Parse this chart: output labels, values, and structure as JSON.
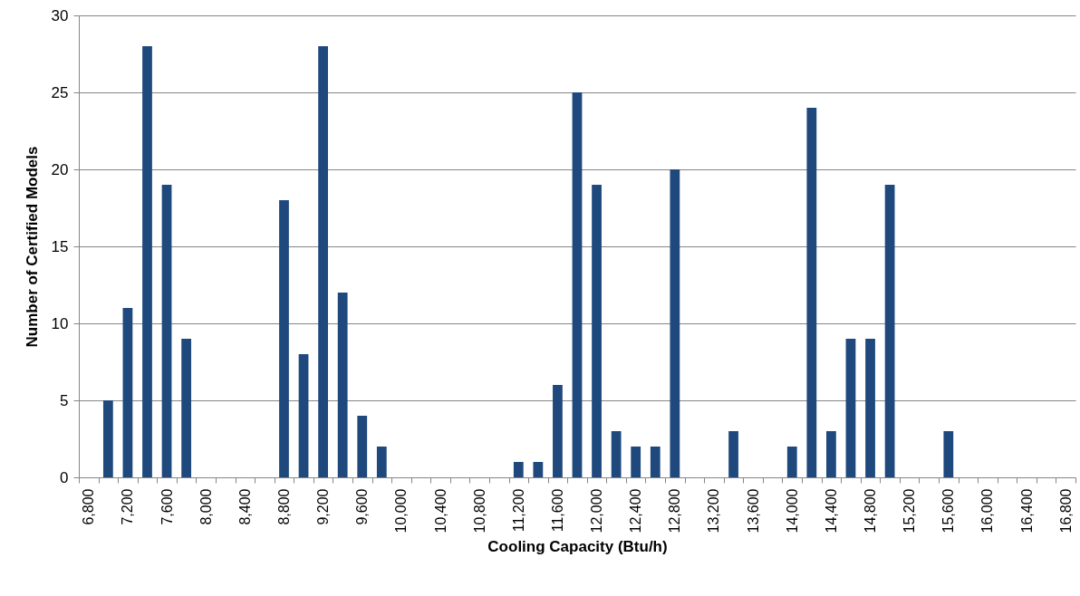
{
  "chart_data": {
    "type": "bar",
    "xlabel": "Cooling Capacity (Btu/h)",
    "ylabel": "Number of Certified Models",
    "categories": [
      "6,800",
      null,
      "7,200",
      null,
      "7,600",
      null,
      "8,000",
      null,
      "8,400",
      null,
      "8,800",
      null,
      "9,200",
      null,
      "9,600",
      null,
      "10,000",
      null,
      "10,400",
      null,
      "10,800",
      null,
      "11,200",
      null,
      "11,600",
      null,
      "12,000",
      null,
      "12,400",
      null,
      "12,800",
      null,
      "13,200",
      null,
      "13,600",
      null,
      "14,000",
      null,
      "14,400",
      null,
      "14,800",
      null,
      "15,200",
      null,
      "15,600",
      null,
      "16,000",
      null,
      "16,400",
      null,
      "16,800"
    ],
    "values": [
      0,
      5,
      11,
      28,
      19,
      9,
      0,
      0,
      0,
      0,
      18,
      8,
      28,
      12,
      4,
      2,
      0,
      0,
      0,
      0,
      0,
      0,
      1,
      1,
      6,
      25,
      19,
      3,
      2,
      2,
      20,
      0,
      0,
      3,
      0,
      0,
      2,
      24,
      3,
      9,
      9,
      19,
      0,
      0,
      3,
      0,
      0,
      0,
      0,
      0,
      0
    ],
    "color": "#1f497d",
    "ylim": [
      0,
      30
    ],
    "yticks": [
      0,
      5,
      10,
      15,
      20,
      25,
      30
    ],
    "grid": "y"
  }
}
